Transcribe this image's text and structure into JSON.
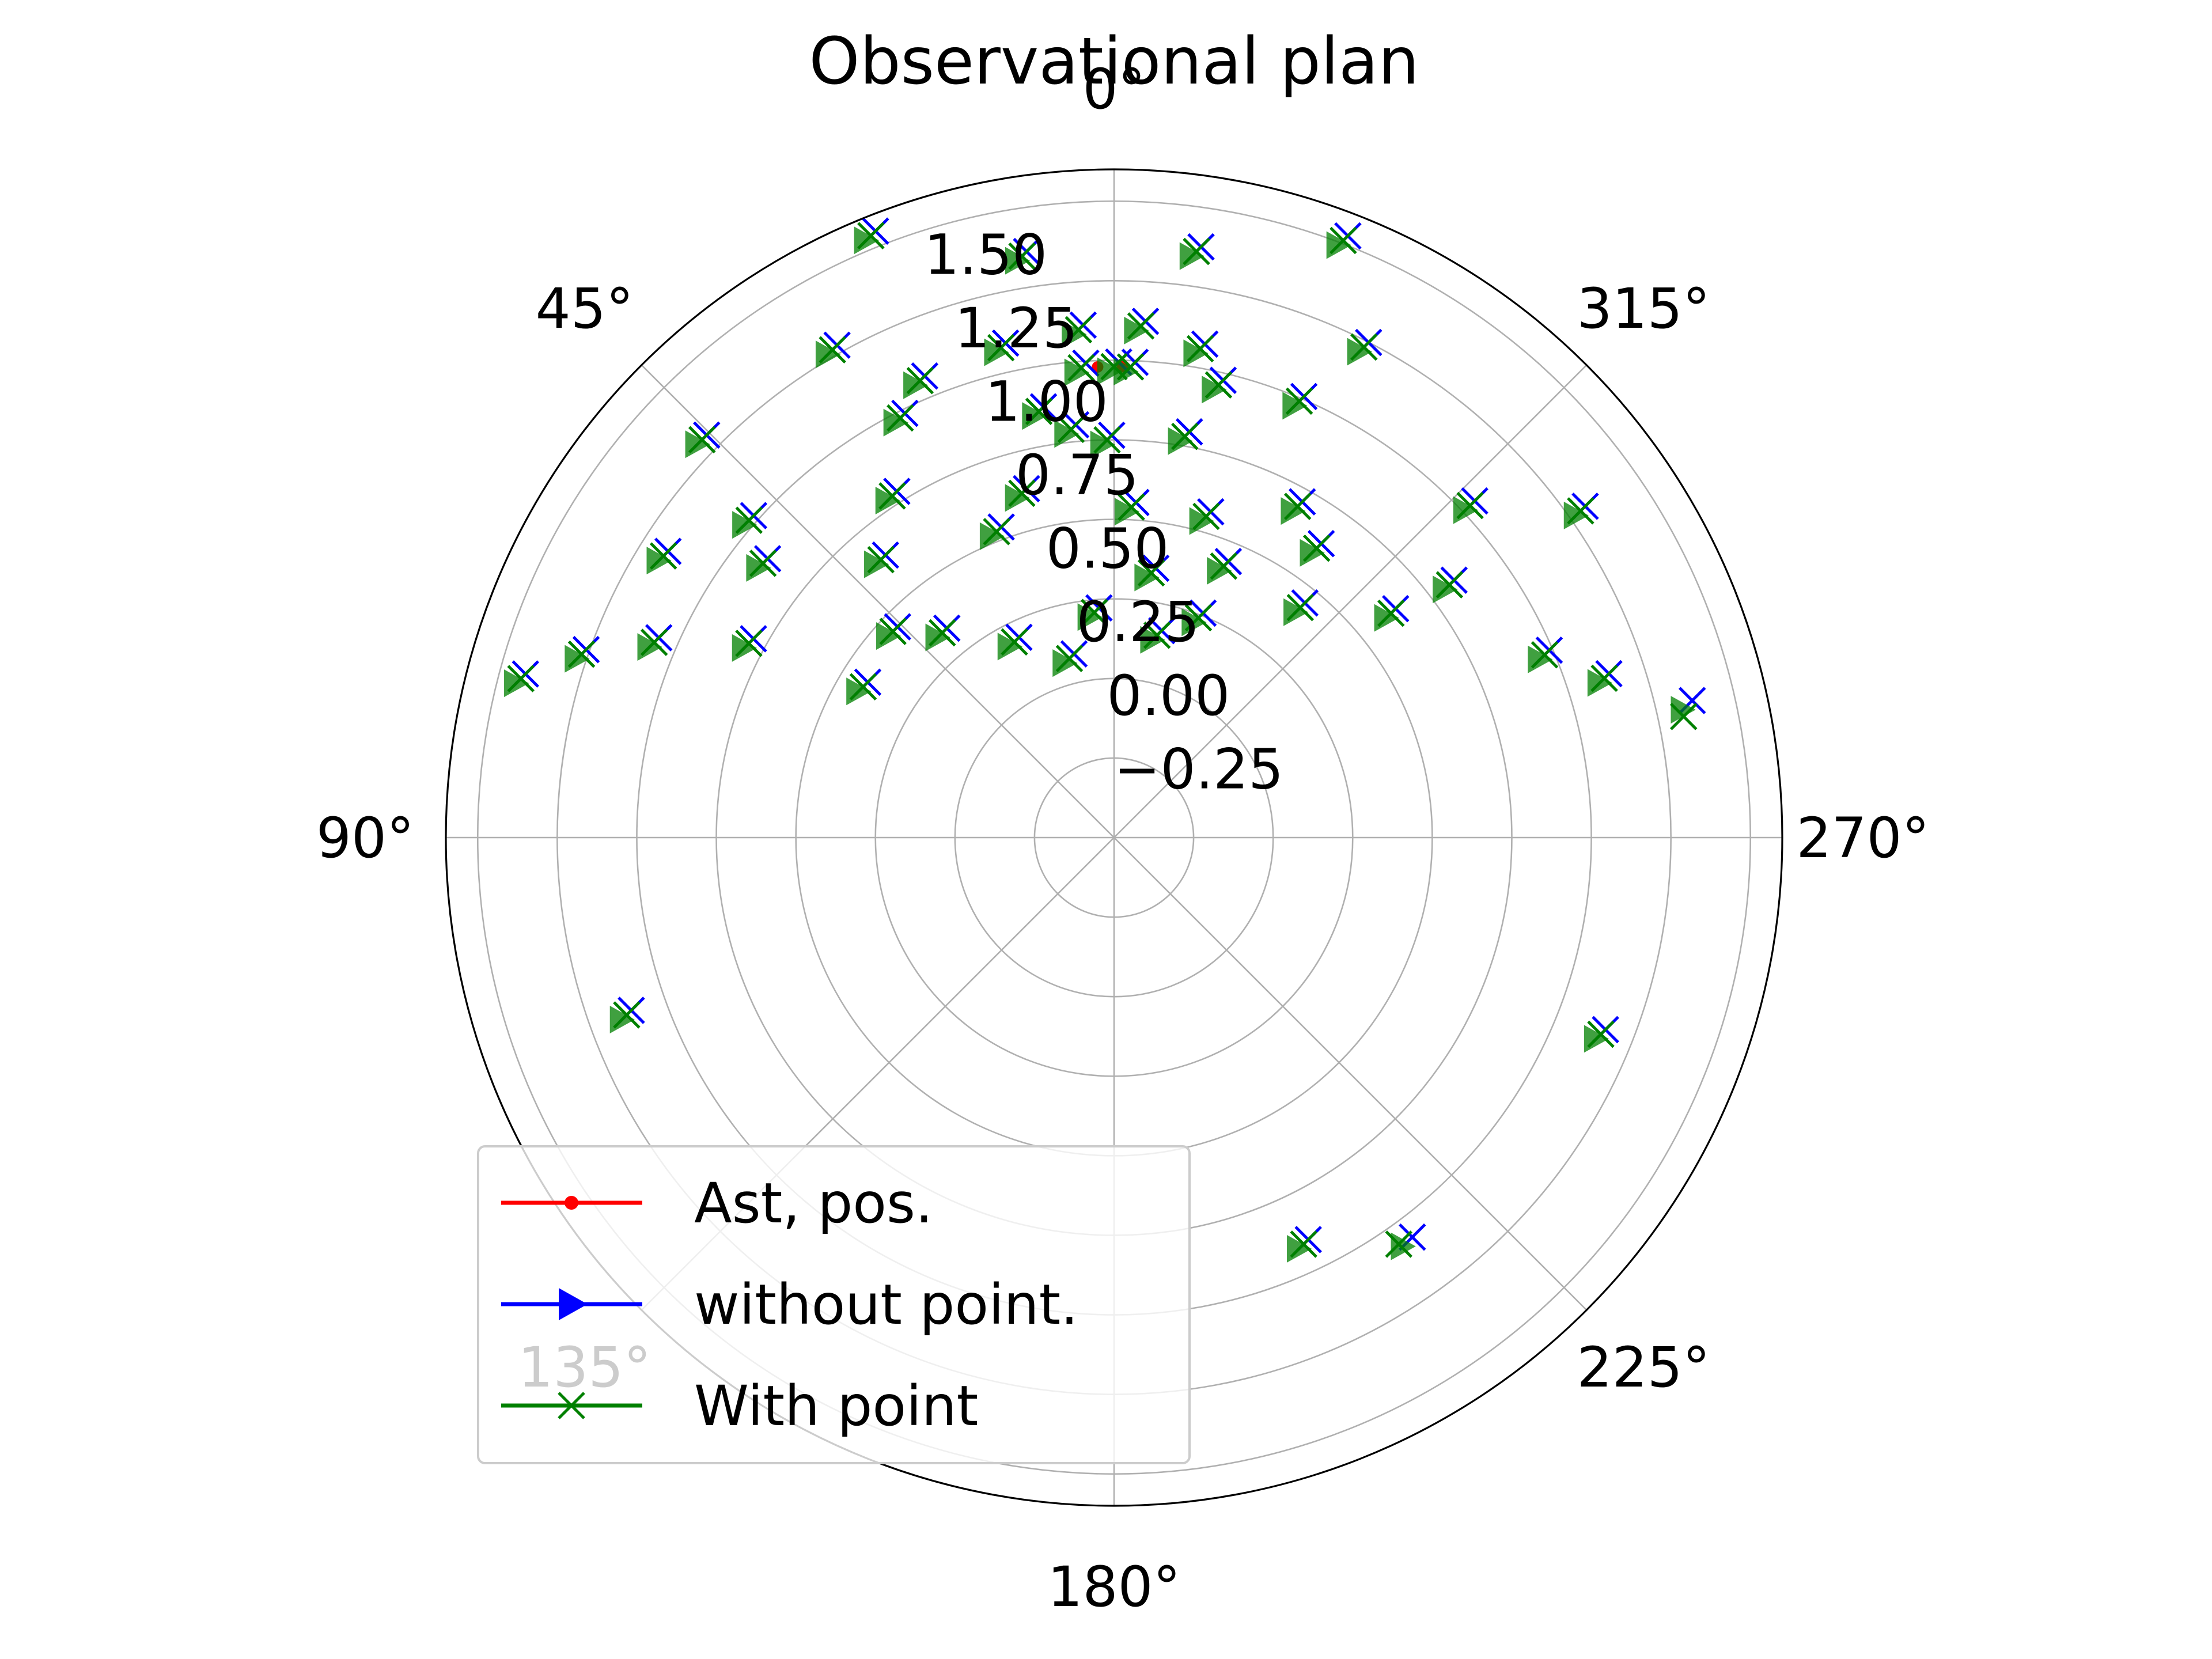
{
  "chart_data": {
    "type": "scatter",
    "projection": "polar",
    "title": "Observational plan",
    "theta_direction": "clockwise",
    "theta_zero_location": "top",
    "theta_ticks": [
      "0°",
      "45°",
      "90°",
      "135°",
      "180°",
      "225°",
      "270°",
      "315°"
    ],
    "theta_tick_degrees": [
      0,
      45,
      90,
      135,
      180,
      225,
      270,
      315
    ],
    "r_ticks": [
      "−0.25",
      "0.00",
      "0.25",
      "0.50",
      "0.75",
      "1.00",
      "1.25",
      "1.50"
    ],
    "r_tick_values": [
      -0.25,
      0.0,
      0.25,
      0.5,
      0.75,
      1.0,
      1.25,
      1.5
    ],
    "rlim": [
      -0.5,
      1.6
    ],
    "grid": true,
    "legend": {
      "placement": "lower-left",
      "entries": [
        {
          "label": "Ast, pos.",
          "color": "#ff0000",
          "marker": "dot"
        },
        {
          "label": "without point.",
          "color": "#0000ff",
          "marker": "triangle-right"
        },
        {
          "label": "With point",
          "color": "#008000",
          "marker": "x"
        }
      ]
    },
    "series": [
      {
        "name": "Ast, pos.",
        "color": "#ff0000",
        "points": [
          {
            "theta": 2,
            "r": 0.98
          },
          {
            "theta": -1,
            "r": 0.98
          }
        ]
      },
      {
        "name": "without point.",
        "color": "#0000ff",
        "points": [
          {
            "theta": 4,
            "r": 0.98
          },
          {
            "theta": 0,
            "r": 0.98
          },
          {
            "theta": -2,
            "r": 0.98
          },
          {
            "theta": 22,
            "r": 1.54
          },
          {
            "theta": 9,
            "r": 1.35
          },
          {
            "theta": -8,
            "r": 1.36
          },
          {
            "theta": -21,
            "r": 1.51
          },
          {
            "theta": 4,
            "r": 1.1
          },
          {
            "theta": -3,
            "r": 1.11
          },
          {
            "theta": 30,
            "r": 1.27
          },
          {
            "theta": 13,
            "r": 1.08
          },
          {
            "theta": -10,
            "r": 1.06
          },
          {
            "theta": -27,
            "r": 1.23
          },
          {
            "theta": 23,
            "r": 1.06
          },
          {
            "theta": -13,
            "r": 0.96
          },
          {
            "theta": 10,
            "r": 0.86
          },
          {
            "theta": 6,
            "r": 0.79
          },
          {
            "theta": 1,
            "r": 0.75
          },
          {
            "theta": 27,
            "r": 0.98
          },
          {
            "theta": -10,
            "r": 0.78
          },
          {
            "theta": -23,
            "r": 0.99
          },
          {
            "theta": 46,
            "r": 1.3
          },
          {
            "theta": 15,
            "r": 0.62
          },
          {
            "theta": -3,
            "r": 0.54
          },
          {
            "theta": -16,
            "r": 0.55
          },
          {
            "theta": -29,
            "r": 0.69
          },
          {
            "theta": -47,
            "r": 1.03
          },
          {
            "theta": 49,
            "r": 1.02
          },
          {
            "theta": 33,
            "r": 0.78
          },
          {
            "theta": 21,
            "r": 0.53
          },
          {
            "theta": -8,
            "r": 0.34
          },
          {
            "theta": -22,
            "r": 0.42
          },
          {
            "theta": -35,
            "r": 0.61
          },
          {
            "theta": -55,
            "r": 1.29
          },
          {
            "theta": 58,
            "r": 1.17
          },
          {
            "theta": 52,
            "r": 0.9
          },
          {
            "theta": 40,
            "r": 0.64
          },
          {
            "theta": -21,
            "r": 0.24
          },
          {
            "theta": -39,
            "r": 0.43
          },
          {
            "theta": -51,
            "r": 0.62
          },
          {
            "theta": 67,
            "r": 1.07
          },
          {
            "theta": 62,
            "r": 0.8
          },
          {
            "theta": 47,
            "r": 0.45
          },
          {
            "theta": 5,
            "r": 0.21
          },
          {
            "theta": -12,
            "r": 0.15
          },
          {
            "theta": -53,
            "r": 0.82
          },
          {
            "theta": -67,
            "r": 0.97
          },
          {
            "theta": 71,
            "r": 1.27
          },
          {
            "theta": 59,
            "r": 0.42
          },
          {
            "theta": 40,
            "r": 0.34
          },
          {
            "theta": 27,
            "r": 0.19
          },
          {
            "theta": 14,
            "r": 0.08
          },
          {
            "theta": -72,
            "r": 1.12
          },
          {
            "theta": 75,
            "r": 1.43
          },
          {
            "theta": -77,
            "r": 1.35
          },
          {
            "theta": 110,
            "r": 1.13
          },
          {
            "theta": -112,
            "r": 1.15
          },
          {
            "theta": -144,
            "r": 1.07
          },
          {
            "theta": -155,
            "r": 0.91
          }
        ]
      },
      {
        "name": "With point",
        "color": "#008000",
        "points": [
          {
            "theta": 4,
            "r": 0.98
          },
          {
            "theta": 0,
            "r": 0.98
          },
          {
            "theta": -2,
            "r": 0.98
          },
          {
            "theta": 22,
            "r": 1.54
          },
          {
            "theta": 9,
            "r": 1.35
          },
          {
            "theta": -8,
            "r": 1.36
          },
          {
            "theta": -21,
            "r": 1.51
          },
          {
            "theta": 4,
            "r": 1.1
          },
          {
            "theta": -3,
            "r": 1.11
          },
          {
            "theta": 30,
            "r": 1.27
          },
          {
            "theta": 13,
            "r": 1.08
          },
          {
            "theta": -10,
            "r": 1.06
          },
          {
            "theta": -27,
            "r": 1.23
          },
          {
            "theta": 23,
            "r": 1.06
          },
          {
            "theta": -13,
            "r": 0.96
          },
          {
            "theta": 10,
            "r": 0.86
          },
          {
            "theta": 6,
            "r": 0.79
          },
          {
            "theta": 1,
            "r": 0.75
          },
          {
            "theta": 27,
            "r": 0.98
          },
          {
            "theta": -10,
            "r": 0.78
          },
          {
            "theta": -23,
            "r": 0.99
          },
          {
            "theta": 46,
            "r": 1.3
          },
          {
            "theta": 15,
            "r": 0.62
          },
          {
            "theta": -3,
            "r": 0.54
          },
          {
            "theta": -16,
            "r": 0.55
          },
          {
            "theta": -29,
            "r": 0.69
          },
          {
            "theta": -47,
            "r": 1.03
          },
          {
            "theta": 49,
            "r": 1.02
          },
          {
            "theta": 33,
            "r": 0.78
          },
          {
            "theta": 21,
            "r": 0.53
          },
          {
            "theta": -8,
            "r": 0.34
          },
          {
            "theta": -22,
            "r": 0.42
          },
          {
            "theta": -35,
            "r": 0.61
          },
          {
            "theta": -55,
            "r": 1.29
          },
          {
            "theta": 58,
            "r": 1.17
          },
          {
            "theta": 52,
            "r": 0.9
          },
          {
            "theta": 40,
            "r": 0.64
          },
          {
            "theta": -21,
            "r": 0.24
          },
          {
            "theta": -39,
            "r": 0.43
          },
          {
            "theta": -51,
            "r": 0.62
          },
          {
            "theta": 67,
            "r": 1.07
          },
          {
            "theta": 62,
            "r": 0.8
          },
          {
            "theta": 47,
            "r": 0.45
          },
          {
            "theta": 5,
            "r": 0.21
          },
          {
            "theta": -12,
            "r": 0.15
          },
          {
            "theta": -53,
            "r": 0.82
          },
          {
            "theta": -67,
            "r": 0.97
          },
          {
            "theta": 71,
            "r": 1.27
          },
          {
            "theta": 59,
            "r": 0.42
          },
          {
            "theta": 40,
            "r": 0.34
          },
          {
            "theta": 27,
            "r": 0.19
          },
          {
            "theta": 14,
            "r": 0.08
          },
          {
            "theta": -72,
            "r": 1.12
          },
          {
            "theta": 75,
            "r": 1.43
          },
          {
            "theta": -78,
            "r": 1.33
          },
          {
            "theta": 110,
            "r": 1.13
          },
          {
            "theta": -112,
            "r": 1.15
          },
          {
            "theta": -145,
            "r": 1.06
          },
          {
            "theta": -155,
            "r": 0.91
          }
        ]
      }
    ]
  }
}
